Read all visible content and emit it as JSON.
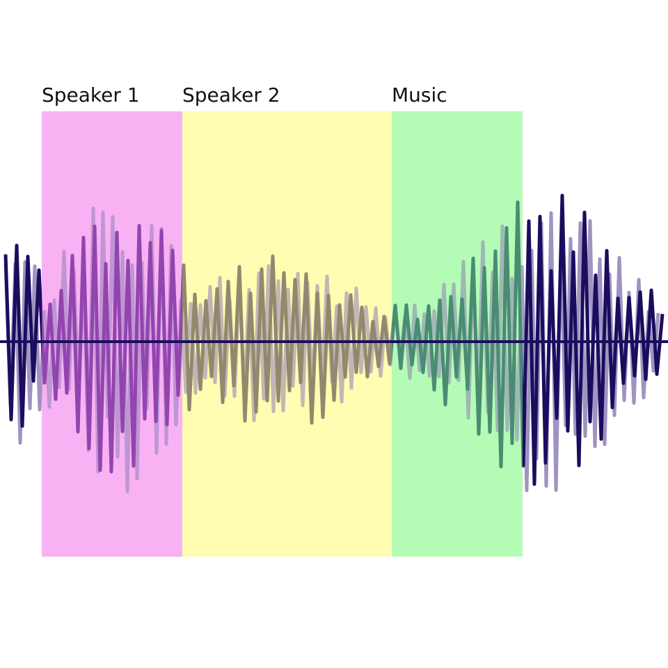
{
  "segments": [
    {
      "label": "Speaker 1",
      "color": "#f8b3f3",
      "wave_color": "#5b0a8a"
    },
    {
      "label": "Speaker 2",
      "color": "#fefdb3",
      "wave_color": "#5a4a4a"
    },
    {
      "label": "Music",
      "color": "#b4fcb6",
      "wave_color": "#12504f"
    }
  ],
  "colors": {
    "wave_back": "#8f80b6",
    "wave_front": "#1a0d5e",
    "baseline": "#1a0d5e",
    "background": "#ffffff"
  }
}
